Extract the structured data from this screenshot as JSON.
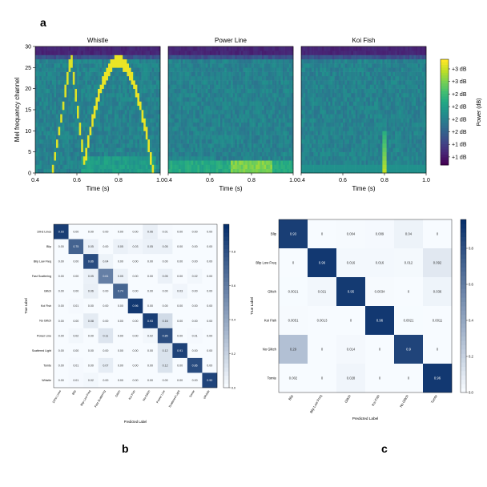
{
  "panel_labels": {
    "a": "a",
    "b": "b",
    "c": "c"
  },
  "chart_data": [
    {
      "type": "heatmap",
      "panel": "a",
      "subtype": "spectrogram",
      "ylabel": "Mel frequency channel",
      "xlabel": "Time (s)",
      "xlim": [
        0.4,
        1.0
      ],
      "ylim": [
        0,
        30
      ],
      "x_ticks": [
        "0.4",
        "0.6",
        "0.8",
        "1.0"
      ],
      "y_ticks": [
        "0",
        "5",
        "10",
        "15",
        "20",
        "25",
        "30"
      ],
      "colorbar": {
        "label": "Power (dB)",
        "tick_labels": [
          "+3 dB",
          "+3 dB",
          "+2 dB",
          "+2 dB",
          "+2 dB",
          "+2 dB",
          "+1 dB",
          "+1 dB"
        ],
        "colors": [
          "#3b0f70",
          "#3f4a8a",
          "#31688e",
          "#26828e",
          "#1f9e89",
          "#35b779",
          "#6ece58",
          "#b5de2b",
          "#fde725"
        ]
      },
      "subplots": [
        {
          "title": "Whistle",
          "show_ylabel": true
        },
        {
          "title": "Power Line",
          "show_ylabel": false
        },
        {
          "title": "Koi Fish",
          "show_ylabel": false
        }
      ]
    },
    {
      "type": "heatmap",
      "panel": "b",
      "subtype": "confusion_matrix",
      "xlabel": "Predicted Label",
      "ylabel": "True Label",
      "labels": [
        "10Hz Lines",
        "Blip",
        "Blip Low Freq",
        "Fast Scattering",
        "Glitch",
        "Koi Fish",
        "No Glitch",
        "Power Line",
        "Scattered Light",
        "Tomte",
        "Whistle"
      ],
      "colorbar_ticks": [
        "0.0",
        "0.2",
        "0.4",
        "0.6",
        "0.8"
      ],
      "values": [
        [
          0.93,
          0.0,
          0.0,
          0.0,
          0.0,
          0.0,
          0.06,
          0.01,
          0.0,
          0.0,
          0.0
        ],
        [
          0.0,
          0.75,
          0.05,
          0.0,
          0.05,
          0.03,
          0.05,
          0.05,
          0.0,
          0.0,
          0.0
        ],
        [
          0.0,
          0.0,
          0.86,
          0.04,
          0.0,
          0.0,
          0.0,
          0.0,
          0.0,
          0.0,
          0.0
        ],
        [
          0.0,
          0.0,
          0.05,
          0.61,
          0.05,
          0.0,
          0.0,
          0.05,
          0.0,
          0.02,
          0.0
        ],
        [
          0.0,
          0.0,
          0.06,
          0.0,
          0.74,
          0.0,
          0.0,
          0.0,
          0.03,
          0.0,
          0.0
        ],
        [
          0.0,
          0.01,
          0.0,
          0.0,
          0.0,
          0.96,
          0.0,
          0.0,
          0.0,
          0.0,
          0.0
        ],
        [
          0.0,
          0.0,
          0.08,
          0.0,
          0.0,
          0.0,
          0.93,
          0.16,
          0.0,
          0.0,
          0.0
        ],
        [
          0.0,
          0.02,
          0.0,
          0.11,
          0.0,
          0.0,
          0.02,
          0.85,
          0.0,
          0.01,
          0.0
        ],
        [
          0.0,
          0.0,
          0.0,
          0.0,
          0.0,
          0.0,
          0.0,
          0.12,
          0.91,
          0.0,
          0.0
        ],
        [
          0.0,
          0.01,
          0.0,
          0.07,
          0.0,
          0.0,
          0.0,
          0.12,
          0.0,
          0.86,
          0.0
        ],
        [
          0.0,
          0.01,
          0.02,
          0.0,
          0.0,
          0.0,
          0.0,
          0.0,
          0.0,
          0.0,
          0.9
        ]
      ]
    },
    {
      "type": "heatmap",
      "panel": "c",
      "subtype": "confusion_matrix",
      "xlabel": "Predicted Label",
      "ylabel": "True Label",
      "labels": [
        "Blip",
        "Blip Low Freq",
        "Glitch",
        "Koi Fish",
        "No Glitch",
        "Tomte"
      ],
      "colorbar_ticks": [
        "0.0",
        "0.2",
        "0.4",
        "0.6",
        "0.8"
      ],
      "values": [
        [
          0.93,
          0,
          0.004,
          0.009,
          0.04,
          0
        ],
        [
          0,
          0.96,
          0.016,
          0.016,
          0.012,
          0.092
        ],
        [
          0.0021,
          0.021,
          0.95,
          0.0034,
          0,
          0.036
        ],
        [
          0.0051,
          0.0013,
          0,
          0.96,
          0.0021,
          0.0011
        ],
        [
          0.29,
          0,
          0.014,
          0,
          0.9,
          0
        ],
        [
          0.002,
          0,
          0.028,
          0,
          0,
          0.96
        ]
      ],
      "labels_text": [
        [
          "0.93",
          "0",
          "0.004",
          "0.009",
          "0.04",
          "0"
        ],
        [
          "0",
          "0.96",
          "0.016",
          "0.016",
          "0.012",
          "0.092"
        ],
        [
          "0.0021",
          "0.021",
          "0.95",
          "0.0034",
          "0",
          "0.036"
        ],
        [
          "0.0051",
          "0.0013",
          "0",
          "0.96",
          "0.0021",
          "0.0011"
        ],
        [
          "0.29",
          "0",
          "0.014",
          "0",
          "0.9",
          "0"
        ],
        [
          "0.002",
          "0",
          "0.028",
          "0",
          "0",
          "0.96"
        ]
      ]
    }
  ]
}
